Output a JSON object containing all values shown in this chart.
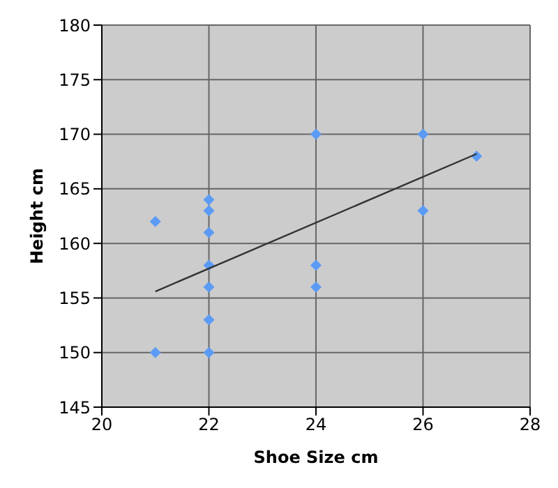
{
  "chart_data": {
    "type": "scatter",
    "xlabel": "Shoe Size cm",
    "ylabel": "Height cm",
    "xlim": [
      20,
      28
    ],
    "xticks": [
      20,
      22,
      24,
      26,
      28
    ],
    "ylim": [
      145,
      180
    ],
    "yticks": [
      145,
      150,
      155,
      160,
      165,
      170,
      175,
      180
    ],
    "grid": true,
    "legend": false,
    "marker": "diamond",
    "series": [
      {
        "color": "#5b9bf5",
        "x": [
          21,
          21,
          22,
          22,
          22,
          22,
          22,
          22,
          22,
          24,
          24,
          24,
          26,
          26,
          27
        ],
        "values": [
          162,
          150,
          164,
          163,
          161,
          158,
          156,
          153,
          150,
          170,
          158,
          156,
          170,
          163,
          168
        ]
      },
      {
        "type": "line",
        "color": "#333333",
        "marker": "none",
        "x": [
          21,
          27
        ],
        "values": [
          155.6,
          168.2
        ]
      }
    ]
  }
}
